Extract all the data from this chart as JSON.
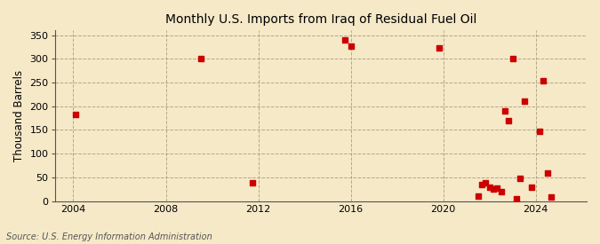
{
  "title": "Monthly U.S. Imports from Iraq of Residual Fuel Oil",
  "ylabel": "Thousand Barrels",
  "source": "Source: U.S. Energy Information Administration",
  "background_color": "#f5e9c8",
  "plot_bg_color": "#f5e9c8",
  "marker_color": "#cc0000",
  "xlim": [
    2003.2,
    2026.2
  ],
  "ylim": [
    0,
    360
  ],
  "yticks": [
    0,
    50,
    100,
    150,
    200,
    250,
    300,
    350
  ],
  "xticks": [
    2004,
    2008,
    2012,
    2016,
    2020,
    2024
  ],
  "grid_color": "#b0a080",
  "spine_color": "#555555",
  "points": [
    [
      2004.08,
      183
    ],
    [
      2009.5,
      300
    ],
    [
      2011.75,
      38
    ],
    [
      2015.75,
      340
    ],
    [
      2016.0,
      327
    ],
    [
      2019.83,
      323
    ],
    [
      2021.5,
      10
    ],
    [
      2021.67,
      35
    ],
    [
      2021.83,
      38
    ],
    [
      2022.0,
      30
    ],
    [
      2022.17,
      25
    ],
    [
      2022.33,
      28
    ],
    [
      2022.5,
      20
    ],
    [
      2022.67,
      190
    ],
    [
      2022.83,
      170
    ],
    [
      2023.0,
      300
    ],
    [
      2023.17,
      5
    ],
    [
      2023.33,
      48
    ],
    [
      2023.5,
      210
    ],
    [
      2023.83,
      30
    ],
    [
      2024.17,
      147
    ],
    [
      2024.33,
      253
    ],
    [
      2024.5,
      60
    ],
    [
      2024.67,
      8
    ]
  ]
}
